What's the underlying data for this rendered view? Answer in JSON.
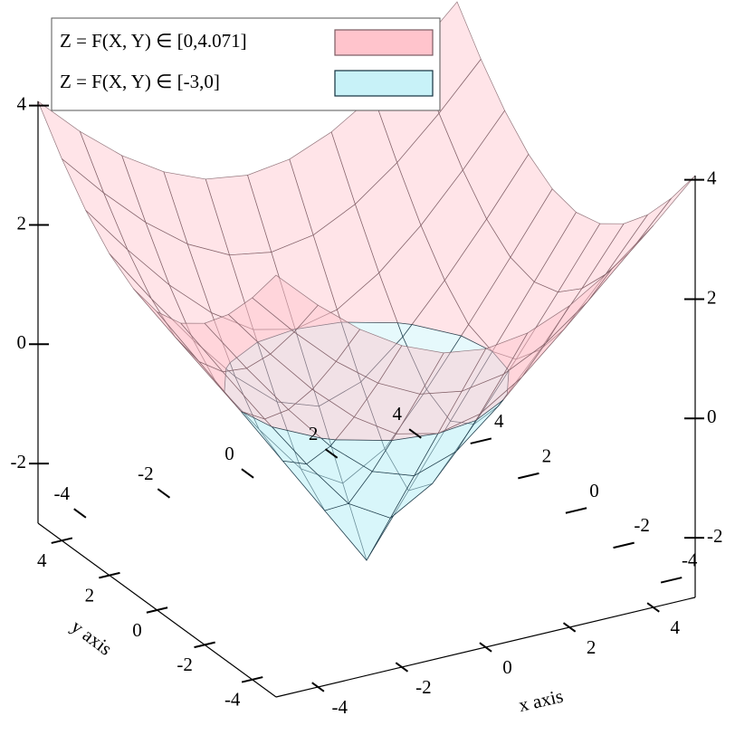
{
  "chart_data": {
    "type": "surface3d",
    "x_label": "x axis",
    "y_label": "y axis",
    "x": [
      -5,
      -4,
      -3,
      -2,
      -1,
      0,
      1,
      2,
      3,
      4,
      5
    ],
    "y": [
      -5,
      -4,
      -3,
      -2,
      -1,
      0,
      1,
      2,
      3,
      4,
      5
    ],
    "z": [
      [
        4.071,
        3.4,
        2.83,
        2.39,
        2.1,
        2,
        2.1,
        2.39,
        2.83,
        3.4,
        4.071
      ],
      [
        3.4,
        2.66,
        2,
        1.47,
        1.12,
        1,
        1.12,
        1.47,
        2,
        2.66,
        3.4
      ],
      [
        2.83,
        2,
        1.24,
        0.61,
        0.16,
        0,
        0.16,
        0.61,
        1.24,
        2,
        2.83
      ],
      [
        2.39,
        1.47,
        0.61,
        -0.17,
        -0.76,
        -1,
        -0.76,
        -0.17,
        0.61,
        1.47,
        2.39
      ],
      [
        2.1,
        1.12,
        0.16,
        -0.76,
        -1.59,
        -2,
        -1.59,
        -0.76,
        0.16,
        1.12,
        2.1
      ],
      [
        2,
        1,
        0,
        -1,
        -2,
        -3,
        -2,
        -1,
        0,
        1,
        2
      ],
      [
        2.1,
        1.12,
        0.16,
        -0.76,
        -1.59,
        -2,
        -1.59,
        -0.76,
        0.16,
        1.12,
        2.1
      ],
      [
        2.39,
        1.47,
        0.61,
        -0.17,
        -0.76,
        -1,
        -0.76,
        -0.17,
        0.61,
        1.47,
        2.39
      ],
      [
        2.83,
        2,
        1.24,
        0.61,
        0.16,
        0,
        0.16,
        0.61,
        1.24,
        2,
        2.83
      ],
      [
        3.4,
        2.66,
        2,
        1.47,
        1.12,
        1,
        1.12,
        1.47,
        2,
        2.66,
        3.4
      ],
      [
        4.071,
        3.4,
        2.83,
        2.39,
        2.1,
        2,
        2.1,
        2.39,
        2.83,
        3.4,
        4.071
      ]
    ],
    "xlim": [
      -5,
      5
    ],
    "ylim": [
      -5,
      5
    ],
    "zlim": [
      -3,
      4.071
    ],
    "xticks": [
      -4,
      -2,
      0,
      2,
      4
    ],
    "yticks": [
      -4,
      -2,
      0,
      2,
      4
    ],
    "zticks": [
      -2,
      0,
      2,
      4
    ],
    "series": [
      {
        "name": "Z = F(X, Y) ∈ [0,4.071]",
        "color": "#ffc4cc",
        "edge": "#7a5a62",
        "range": [
          0,
          4.071
        ]
      },
      {
        "name": "Z = F(X, Y) ∈ [-3,0]",
        "color": "#c8f2f8",
        "edge": "#12303e",
        "range": [
          -3,
          0
        ]
      }
    ]
  }
}
